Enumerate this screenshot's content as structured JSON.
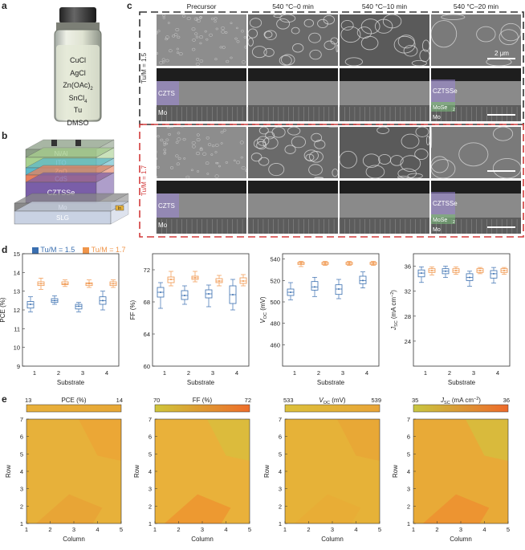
{
  "panel_labels": {
    "a": "a",
    "b": "b",
    "c": "c",
    "d": "d",
    "e": "e"
  },
  "vial": {
    "lines": [
      "CuCl",
      "AgCl",
      "Zn(OAc)",
      "SnCl",
      "Tu",
      "DMSO"
    ],
    "subs": [
      "",
      "",
      "2",
      "4",
      "",
      ""
    ]
  },
  "device": {
    "layers": [
      {
        "label": "Ni/Al",
        "color": "#8c9e86"
      },
      {
        "label": "ITO",
        "color": "#a8d08f"
      },
      {
        "label": "ZnO",
        "color": "#5cb8c9"
      },
      {
        "label": "CdS",
        "color": "#e87f5c"
      },
      {
        "label": "CZTSSe",
        "color": "#7a5ea8"
      },
      {
        "label": "Mo",
        "color": "#888888"
      },
      {
        "label": "SLG",
        "color": "#c9d2e3"
      }
    ],
    "contact_label": "In"
  },
  "sem": {
    "columns": [
      "Precursor",
      "540 °C–0 min",
      "540 °C–10 min",
      "540 °C–20 min"
    ],
    "rows": [
      {
        "ratio": "Tu/M = 1.5",
        "color": "#333333",
        "cross_labels": {
          "left_top": "CZTS",
          "left_bottom": "Mo",
          "right_top": "CZTSSe",
          "right_mid": "MoSe",
          "right_mid_sub": "2",
          "right_bottom": "Mo"
        }
      },
      {
        "ratio": "Tu/M = 1.7",
        "color": "#d23a3a",
        "cross_labels": {
          "left_top": "CZTS",
          "left_bottom": "Mo",
          "right_top": "CZTSSe",
          "right_mid": "MoSe",
          "right_mid_sub": "2",
          "right_bottom": "Mo"
        }
      }
    ],
    "scalebar": "2 μm"
  },
  "chart_data": [
    {
      "type": "box",
      "metric": "PCE",
      "ylabel": "PCE (%)",
      "xlabel": "Substrate",
      "ylim": [
        9,
        15
      ],
      "yticks": [
        9,
        10,
        11,
        12,
        13,
        14,
        15
      ],
      "categories": [
        "1",
        "2",
        "3",
        "4"
      ],
      "series": [
        {
          "name": "Tu/M = 1.5",
          "color": "#3a6fb0",
          "median": [
            12.3,
            12.5,
            12.2,
            12.5
          ],
          "q1": [
            12.1,
            12.4,
            12.05,
            12.3
          ],
          "q3": [
            12.45,
            12.6,
            12.3,
            12.7
          ],
          "min": [
            11.9,
            12.3,
            11.9,
            12.0
          ],
          "max": [
            12.7,
            12.75,
            12.4,
            13.0
          ]
        },
        {
          "name": "Tu/M = 1.7",
          "color": "#f0954a",
          "median": [
            13.4,
            13.4,
            13.4,
            13.4
          ],
          "q1": [
            13.3,
            13.35,
            13.3,
            13.3
          ],
          "q3": [
            13.5,
            13.5,
            13.45,
            13.5
          ],
          "min": [
            13.1,
            13.25,
            13.2,
            13.2
          ],
          "max": [
            13.7,
            13.6,
            13.6,
            13.6
          ]
        }
      ]
    },
    {
      "type": "box",
      "metric": "FF",
      "ylabel": "FF (%)",
      "xlabel": "Substrate",
      "ylim": [
        60,
        74
      ],
      "yticks": [
        60,
        64,
        68,
        72
      ],
      "categories": [
        "1",
        "2",
        "3",
        "4"
      ],
      "series": [
        {
          "name": "Tu/M = 1.5",
          "color": "#3a6fb0",
          "median": [
            69.2,
            68.8,
            69.0,
            68.9
          ],
          "q1": [
            68.6,
            68.3,
            68.5,
            67.8
          ],
          "q3": [
            69.8,
            69.4,
            69.5,
            70.0
          ],
          "min": [
            67.2,
            67.7,
            67.4,
            67.0
          ],
          "max": [
            70.4,
            70.0,
            70.1,
            70.8
          ]
        },
        {
          "name": "Tu/M = 1.7",
          "color": "#f0954a",
          "median": [
            70.8,
            71.0,
            70.6,
            70.6
          ],
          "q1": [
            70.4,
            70.8,
            70.4,
            70.3
          ],
          "q3": [
            71.1,
            71.2,
            70.9,
            71.0
          ],
          "min": [
            70.0,
            70.5,
            70.0,
            70.0
          ],
          "max": [
            71.8,
            71.8,
            71.3,
            71.4
          ]
        }
      ]
    },
    {
      "type": "box",
      "metric": "VOC",
      "ylabel": "V",
      "ylabel_sub": "OC",
      "ylabel_unit": " (mV)",
      "xlabel": "Substrate",
      "ylim": [
        440,
        545
      ],
      "yticks": [
        460,
        480,
        500,
        520,
        540
      ],
      "categories": [
        "1",
        "2",
        "3",
        "4"
      ],
      "series": [
        {
          "name": "Tu/M = 1.5",
          "color": "#3a6fb0",
          "median": [
            509,
            514,
            512,
            520
          ],
          "q1": [
            506,
            511,
            507,
            517
          ],
          "q3": [
            512,
            519,
            516,
            524
          ],
          "min": [
            502,
            505,
            503,
            513
          ],
          "max": [
            518,
            523,
            521,
            528
          ]
        },
        {
          "name": "Tu/M = 1.7",
          "color": "#f0954a",
          "median": [
            536,
            536,
            536,
            536
          ],
          "q1": [
            535,
            535,
            535,
            535
          ],
          "q3": [
            537,
            537,
            537,
            537
          ],
          "min": [
            533,
            534,
            534,
            534
          ],
          "max": [
            538,
            538,
            538,
            538
          ]
        }
      ]
    },
    {
      "type": "box",
      "metric": "JSC",
      "ylabel": "J",
      "ylabel_sub": "SC",
      "ylabel_unit": " (mA cm",
      "ylabel_sup": "−2",
      "ylabel_end": ")",
      "xlabel": "Substrate",
      "ylim": [
        20,
        38
      ],
      "yticks": [
        24,
        28,
        32,
        36
      ],
      "categories": [
        "1",
        "2",
        "3",
        "4"
      ],
      "series": [
        {
          "name": "Tu/M = 1.5",
          "color": "#3a6fb0",
          "median": [
            34.9,
            35.2,
            34.2,
            34.8
          ],
          "q1": [
            34.3,
            34.8,
            33.7,
            34.1
          ],
          "q3": [
            35.4,
            35.6,
            34.8,
            35.3
          ],
          "min": [
            33.4,
            34.2,
            32.8,
            33.3
          ],
          "max": [
            35.9,
            36.0,
            35.2,
            35.8
          ]
        },
        {
          "name": "Tu/M = 1.7",
          "color": "#f0954a",
          "median": [
            35.3,
            35.3,
            35.3,
            35.3
          ],
          "q1": [
            35.0,
            35.0,
            35.0,
            35.0
          ],
          "q3": [
            35.6,
            35.6,
            35.6,
            35.6
          ],
          "min": [
            34.6,
            34.7,
            34.8,
            34.7
          ],
          "max": [
            35.9,
            35.9,
            35.8,
            35.8
          ]
        }
      ]
    },
    {
      "type": "heatmap",
      "metric": "PCE",
      "colorbar_label": "PCE (%)",
      "colorbar_range": [
        13,
        14
      ],
      "xlabel": "Column",
      "ylabel": "Row",
      "xticks": [
        1,
        2,
        3,
        4,
        5
      ],
      "yticks": [
        1,
        2,
        3,
        4,
        5,
        6,
        7
      ]
    },
    {
      "type": "heatmap",
      "metric": "FF",
      "colorbar_label": "FF (%)",
      "colorbar_range": [
        70,
        72
      ],
      "xlabel": "Column",
      "ylabel": "Row",
      "xticks": [
        1,
        2,
        3,
        4,
        5
      ],
      "yticks": [
        1,
        2,
        3,
        4,
        5,
        6,
        7
      ]
    },
    {
      "type": "heatmap",
      "metric": "VOC",
      "colorbar_label": "V",
      "colorbar_sub": "OC",
      "colorbar_unit": " (mV)",
      "colorbar_range": [
        533,
        539
      ],
      "xlabel": "Column",
      "ylabel": "Row",
      "xticks": [
        1,
        2,
        3,
        4,
        5
      ],
      "yticks": [
        1,
        2,
        3,
        4,
        5,
        6,
        7
      ]
    },
    {
      "type": "heatmap",
      "metric": "JSC",
      "colorbar_label": "J",
      "colorbar_sub": "SC",
      "colorbar_unit": " (mA cm",
      "colorbar_sup": "−2",
      "colorbar_end": ")",
      "colorbar_range": [
        35,
        36
      ],
      "xlabel": "Column",
      "ylabel": "Row",
      "xticks": [
        1,
        2,
        3,
        4,
        5
      ],
      "yticks": [
        1,
        2,
        3,
        4,
        5,
        6,
        7
      ]
    }
  ],
  "legend": [
    {
      "label": "Tu/M = 1.5",
      "color": "#3a6fb0"
    },
    {
      "label": "Tu/M = 1.7",
      "color": "#f0954a"
    }
  ]
}
